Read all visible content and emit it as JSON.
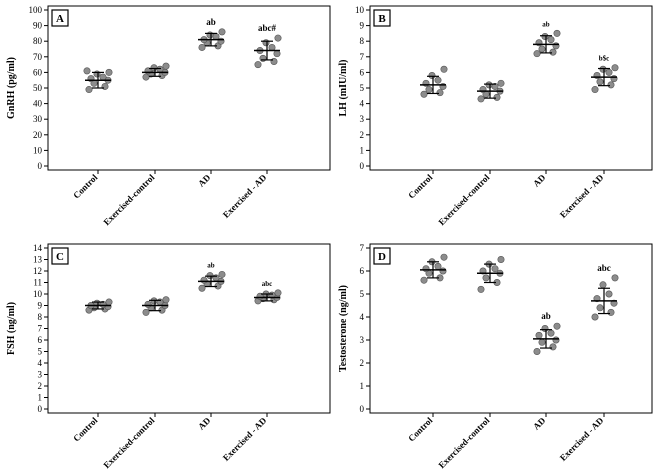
{
  "chart_data": [
    {
      "type": "scatter",
      "panel_label": "A",
      "ylabel": "GnRH (pg/ml)",
      "ylim": [
        0,
        100
      ],
      "ytick_step": 10,
      "categories": [
        "Control",
        "Exercised-control",
        "AD",
        "Exercised - AD"
      ],
      "points": [
        [
          49,
          51,
          53,
          55,
          56,
          57,
          59,
          60,
          61
        ],
        [
          57,
          58,
          59,
          60,
          61,
          62,
          63,
          64
        ],
        [
          76,
          77,
          79,
          80,
          81,
          83,
          84,
          86
        ],
        [
          65,
          67,
          69,
          72,
          74,
          76,
          79,
          82
        ]
      ],
      "means": [
        55,
        60,
        81,
        74
      ],
      "errors": [
        5,
        2.5,
        4,
        6
      ],
      "significance": [
        "",
        "",
        "ab",
        "abc#"
      ]
    },
    {
      "type": "scatter",
      "panel_label": "B",
      "ylabel": "LH (mIU/ml)",
      "ylim": [
        0,
        10
      ],
      "ytick_step": 1,
      "categories": [
        "Control",
        "Exercised-control",
        "AD",
        "Exercised - AD"
      ],
      "points": [
        [
          4.6,
          4.7,
          4.9,
          5.1,
          5.3,
          5.5,
          5.8,
          6.2
        ],
        [
          4.3,
          4.4,
          4.6,
          4.8,
          4.9,
          5.1,
          5.2,
          5.3
        ],
        [
          7.2,
          7.3,
          7.5,
          7.7,
          7.9,
          8.1,
          8.3,
          8.5
        ],
        [
          4.9,
          5.2,
          5.4,
          5.6,
          5.8,
          6.0,
          6.2,
          6.3
        ]
      ],
      "means": [
        5.2,
        4.8,
        7.8,
        5.7
      ],
      "errors": [
        0.55,
        0.45,
        0.55,
        0.55
      ],
      "significance": [
        "",
        "",
        "ab",
        "b$c"
      ]
    },
    {
      "type": "scatter",
      "panel_label": "C",
      "ylabel": "FSH (ng/ml)",
      "ylim": [
        0,
        14
      ],
      "ytick_step": 1,
      "categories": [
        "Control",
        "Exercised-control",
        "AD",
        "Exercised - AD"
      ],
      "points": [
        [
          8.6,
          8.7,
          8.8,
          8.9,
          9.0,
          9.1,
          9.2,
          9.3
        ],
        [
          8.4,
          8.6,
          8.8,
          9.0,
          9.1,
          9.3,
          9.4,
          9.5
        ],
        [
          10.5,
          10.7,
          10.9,
          11.1,
          11.2,
          11.4,
          11.6,
          11.7
        ],
        [
          9.4,
          9.5,
          9.6,
          9.7,
          9.8,
          9.9,
          10.0,
          10.1
        ]
      ],
      "means": [
        9.0,
        9.0,
        11.1,
        9.7
      ],
      "errors": [
        0.3,
        0.45,
        0.45,
        0.3
      ],
      "significance": [
        "",
        "",
        "ab",
        "abc"
      ]
    },
    {
      "type": "scatter",
      "panel_label": "D",
      "ylabel": "Testosterone (ng/ml)",
      "ylim": [
        0,
        7
      ],
      "ytick_step": 1,
      "categories": [
        "Control",
        "Exercised-control",
        "AD",
        "Exercised - AD"
      ],
      "points": [
        [
          5.6,
          5.7,
          5.9,
          6.0,
          6.1,
          6.2,
          6.4,
          6.6
        ],
        [
          5.2,
          5.5,
          5.7,
          5.9,
          6.0,
          6.1,
          6.3,
          6.5
        ],
        [
          2.5,
          2.7,
          2.9,
          3.0,
          3.2,
          3.3,
          3.5,
          3.6
        ],
        [
          4.0,
          4.2,
          4.4,
          4.6,
          4.8,
          5.0,
          5.4,
          5.7
        ]
      ],
      "means": [
        6.05,
        5.9,
        3.05,
        4.7
      ],
      "errors": [
        0.35,
        0.4,
        0.4,
        0.55
      ],
      "significance": [
        "",
        "",
        "ab",
        "abc"
      ]
    }
  ]
}
